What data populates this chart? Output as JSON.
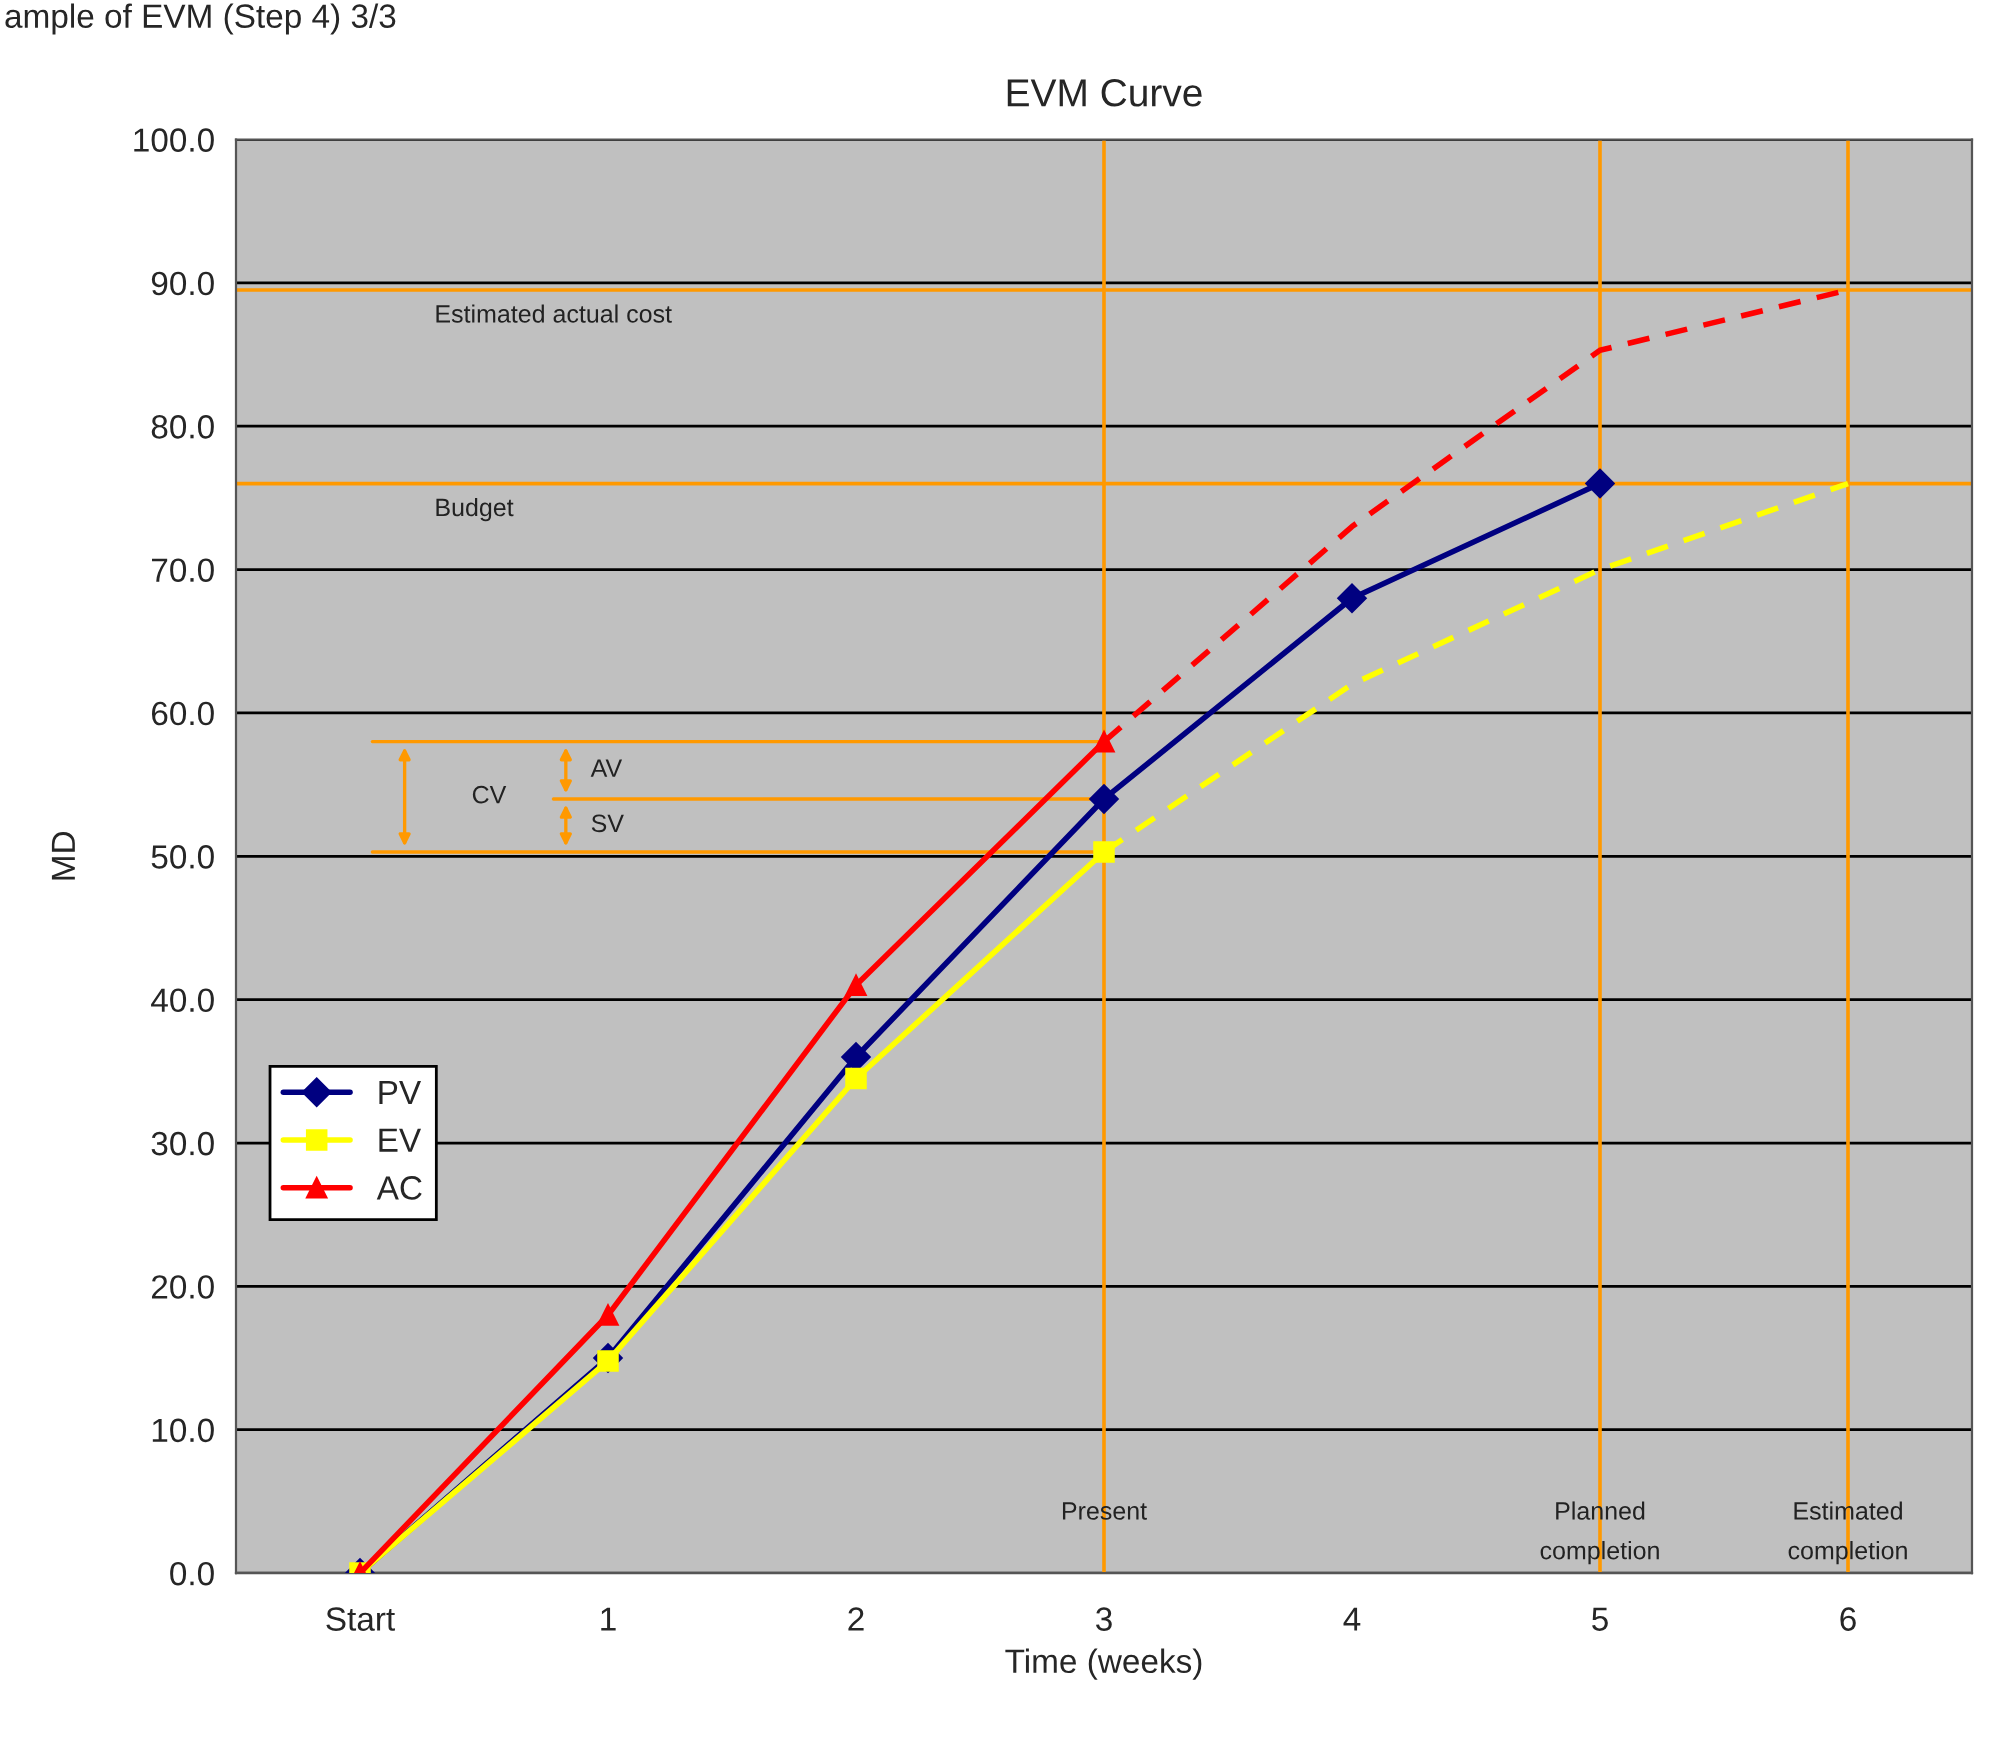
{
  "chart_data": {
    "type": "line",
    "title": "EVM Curve",
    "xlabel": "Time (weeks)",
    "ylabel": "MD",
    "xlim": [
      -0.5,
      6.5
    ],
    "ylim": [
      0,
      100
    ],
    "xticks": [
      {
        "value": 0,
        "label": "Start"
      },
      1,
      2,
      3,
      4,
      5,
      6
    ],
    "yticks": [
      {
        "value": 0,
        "label": "0.0"
      },
      {
        "value": 10,
        "label": "10.0"
      },
      {
        "value": 20,
        "label": "20.0"
      },
      {
        "value": 30,
        "label": "30.0"
      },
      {
        "value": 40,
        "label": "40.0"
      },
      {
        "value": 50,
        "label": "50.0"
      },
      {
        "value": 60,
        "label": "60.0"
      },
      {
        "value": 70,
        "label": "70.0"
      },
      {
        "value": 80,
        "label": "80.0"
      },
      {
        "value": 90,
        "label": "90.0"
      },
      {
        "value": 100,
        "label": "100.0"
      }
    ],
    "grid": "y",
    "legend": "left",
    "series": [
      {
        "name": "PV",
        "color": "#000080",
        "marker": "diamond",
        "line_style": "solid",
        "x": [
          0,
          1,
          2,
          3,
          4,
          5
        ],
        "values": [
          0,
          15,
          36,
          54,
          68,
          76
        ]
      },
      {
        "name": "EV",
        "color": "#ffff00",
        "marker": "square",
        "line_style": "solid",
        "x": [
          0,
          1,
          2,
          3
        ],
        "values": [
          0,
          14.8,
          34.5,
          50.3
        ]
      },
      {
        "name": "AC",
        "color": "#ff0000",
        "marker": "triangle",
        "line_style": "solid",
        "x": [
          0,
          1,
          2,
          3
        ],
        "values": [
          0,
          18,
          41,
          58
        ]
      },
      {
        "color": "#ffff00",
        "marker": "none",
        "line_style": "dashed",
        "x": [
          3,
          4,
          5,
          6
        ],
        "values": [
          50.3,
          62,
          70,
          76
        ]
      },
      {
        "color": "#ff0000",
        "marker": "none",
        "line_style": "dashed",
        "x": [
          3,
          4,
          5,
          6
        ],
        "values": [
          58,
          73,
          85.3,
          89.5
        ]
      }
    ],
    "ref_lines": [
      {
        "axis": "y",
        "value": 89.5,
        "label": "Estimated actual cost",
        "color": "#ff9900"
      },
      {
        "axis": "y",
        "value": 76,
        "label": "Budget",
        "color": "#ff9900"
      },
      {
        "axis": "x",
        "value": 3,
        "label": "Present",
        "color": "#ff9900"
      },
      {
        "axis": "x",
        "value": 5,
        "label": "Planned\ncompletion",
        "color": "#ff9900"
      },
      {
        "axis": "x",
        "value": 6,
        "label": "Estimated\ncompletion",
        "color": "#ff9900"
      },
      {
        "axis": "y",
        "value": 58,
        "label": null,
        "color": "#ff9900"
      },
      {
        "axis": "y",
        "value": 54,
        "label": null,
        "color": "#ff9900"
      },
      {
        "axis": "y",
        "value": 50.3,
        "label": null,
        "color": "#ff9900"
      }
    ],
    "annotations": [
      "ample of EVM (Step 4) 3/3",
      "CV",
      "AV",
      "SV"
    ]
  }
}
